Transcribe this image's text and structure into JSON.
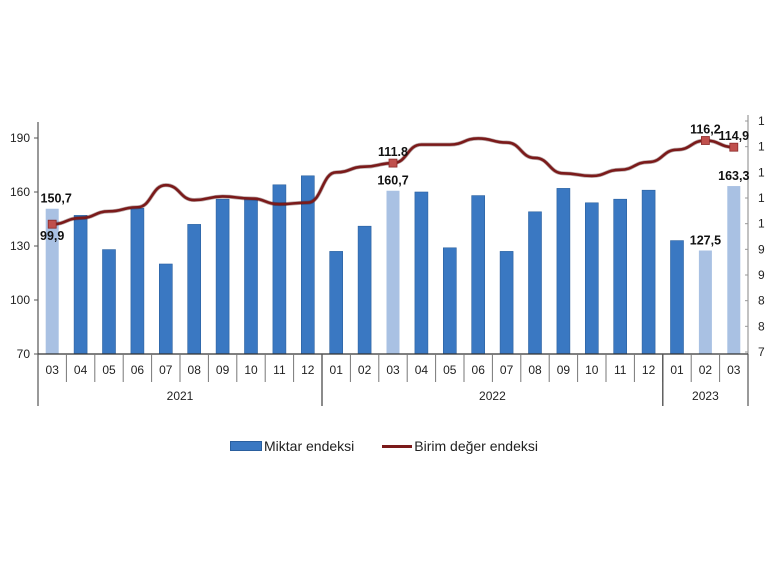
{
  "chart_data": {
    "type": "bar+line",
    "title": "",
    "categories": [
      "03",
      "04",
      "05",
      "06",
      "07",
      "08",
      "09",
      "10",
      "11",
      "12",
      "01",
      "02",
      "03",
      "04",
      "05",
      "06",
      "07",
      "08",
      "09",
      "10",
      "11",
      "12",
      "01",
      "02",
      "03"
    ],
    "years": [
      {
        "label": "2021",
        "start": 0,
        "end": 10
      },
      {
        "label": "2022",
        "start": 10,
        "end": 22
      },
      {
        "label": "2023",
        "start": 22,
        "end": 25
      }
    ],
    "series": [
      {
        "name": "Miktar endeksi",
        "type": "bar",
        "axis": "left",
        "color": "#3a78c2",
        "highlight_color": "#a9c1e3",
        "highlight_indices": [
          0,
          12,
          23,
          24
        ],
        "values": [
          150.7,
          147,
          128,
          151,
          120,
          142,
          156,
          156,
          164,
          169,
          127,
          141,
          160.7,
          160,
          129,
          158,
          127,
          149,
          162,
          154,
          156,
          161,
          133,
          127.5,
          163.3
        ]
      },
      {
        "name": "Birim değer endeksi",
        "type": "line",
        "axis": "right",
        "color": "#7b1a1a",
        "marker_color": "#c0504d",
        "marker_indices": [
          0,
          12,
          23,
          24
        ],
        "values": [
          99.9,
          101.1,
          102.4,
          103.2,
          107.5,
          104.6,
          105.3,
          104.9,
          103.8,
          104.1,
          110.0,
          111.1,
          111.8,
          115.4,
          115.4,
          116.6,
          115.8,
          112.8,
          109.8,
          109.3,
          110.5,
          112.0,
          114.4,
          116.2,
          114.9
        ]
      }
    ],
    "data_labels": [
      {
        "series": 0,
        "index": 0,
        "text": "150,7"
      },
      {
        "series": 1,
        "index": 0,
        "text": "99,9"
      },
      {
        "series": 1,
        "index": 12,
        "text": "111.8"
      },
      {
        "series": 0,
        "index": 12,
        "text": "160,7"
      },
      {
        "series": 1,
        "index": 23,
        "text": "116,2"
      },
      {
        "series": 1,
        "index": 24,
        "text": "114,9"
      },
      {
        "series": 0,
        "index": 23,
        "text": "127,5"
      },
      {
        "series": 0,
        "index": 24,
        "text": "163,3"
      }
    ],
    "left_axis": {
      "ylim": [
        70,
        190
      ],
      "ticks": [
        "190",
        "160",
        "130",
        "100",
        "70"
      ]
    },
    "right_axis": {
      "ylim": [
        75,
        120
      ],
      "ticks_visible": [
        "1",
        "1",
        "1",
        "1",
        "1",
        "9",
        "9",
        "8",
        "8",
        "7"
      ],
      "ticks_implied": [
        120,
        115,
        110,
        105,
        100,
        95,
        90,
        85,
        80,
        75
      ]
    },
    "xlabel": "",
    "ylabel": "",
    "grid": false,
    "legend_position": "bottom"
  },
  "legend": {
    "bar_label": "Miktar endeksi",
    "line_label": "Birim değer endeksi"
  }
}
